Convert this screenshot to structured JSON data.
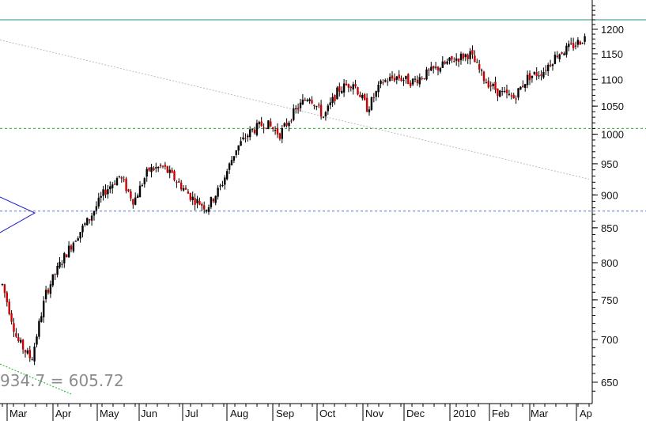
{
  "chart_data": {
    "type": "candlestick",
    "title": "",
    "xlabel": "",
    "ylabel": "",
    "y_scale": "log",
    "ylim": [
      630,
      1270
    ],
    "y_ticks": [
      650,
      700,
      750,
      800,
      850,
      900,
      950,
      1000,
      1050,
      1100,
      1150,
      1200
    ],
    "x_ticks": [
      "Mar",
      "Apr",
      "May",
      "Jun",
      "Jul",
      "Aug",
      "Sep",
      "Oct",
      "Nov",
      "Dec",
      "2010",
      "Feb",
      "Mar",
      "Ap"
    ],
    "grid": false,
    "colors": {
      "up": "#000000",
      "down": "#cc0000",
      "resistance_line": "#2e8b80",
      "level_1010": "#22aa22",
      "level_875": "#5577cc",
      "trendline": "#bbbbbb",
      "triangle": "#1a1acc"
    },
    "horizontal_levels": [
      {
        "value": 1220,
        "style": "solid",
        "color": "#2e8b80"
      },
      {
        "value": 1010,
        "style": "dashed",
        "color": "#22aa22"
      },
      {
        "value": 875,
        "style": "dashed",
        "color": "#5577cc"
      }
    ],
    "trendline": {
      "from": {
        "x": "Mar",
        "y": 1178
      },
      "to": {
        "x": "Ap",
        "y": 925
      },
      "style": "dotted"
    },
    "price_path": [
      {
        "x": "Mar",
        "close": 770
      },
      {
        "x": "Mar",
        "close": 700
      },
      {
        "x": "Mar",
        "close": 676
      },
      {
        "x": "Mar",
        "close": 760
      },
      {
        "x": "Apr",
        "close": 800
      },
      {
        "x": "Apr",
        "close": 835
      },
      {
        "x": "Apr",
        "close": 865
      },
      {
        "x": "May",
        "close": 905
      },
      {
        "x": "May",
        "close": 930
      },
      {
        "x": "May",
        "close": 890
      },
      {
        "x": "Jun",
        "close": 940
      },
      {
        "x": "Jun",
        "close": 945
      },
      {
        "x": "Jun",
        "close": 920
      },
      {
        "x": "Jul",
        "close": 895
      },
      {
        "x": "Jul",
        "close": 880
      },
      {
        "x": "Jul",
        "close": 915
      },
      {
        "x": "Aug",
        "close": 975
      },
      {
        "x": "Aug",
        "close": 1005
      },
      {
        "x": "Aug",
        "close": 1020
      },
      {
        "x": "Sep",
        "close": 1000
      },
      {
        "x": "Sep",
        "close": 1040
      },
      {
        "x": "Sep",
        "close": 1070
      },
      {
        "x": "Oct",
        "close": 1030
      },
      {
        "x": "Oct",
        "close": 1080
      },
      {
        "x": "Oct",
        "close": 1095
      },
      {
        "x": "Nov",
        "close": 1045
      },
      {
        "x": "Nov",
        "close": 1095
      },
      {
        "x": "Nov",
        "close": 1105
      },
      {
        "x": "Dec",
        "close": 1095
      },
      {
        "x": "Dec",
        "close": 1110
      },
      {
        "x": "Dec",
        "close": 1125
      },
      {
        "x": "2010",
        "close": 1140
      },
      {
        "x": "2010",
        "close": 1150
      },
      {
        "x": "2010",
        "close": 1100
      },
      {
        "x": "Feb",
        "close": 1075
      },
      {
        "x": "Feb",
        "close": 1065
      },
      {
        "x": "Feb",
        "close": 1105
      },
      {
        "x": "Mar",
        "close": 1115
      },
      {
        "x": "Mar",
        "close": 1150
      },
      {
        "x": "Mar",
        "close": 1165
      },
      {
        "x": "Ap",
        "close": 1185
      }
    ],
    "annotation": "934.7 = 605.72"
  }
}
